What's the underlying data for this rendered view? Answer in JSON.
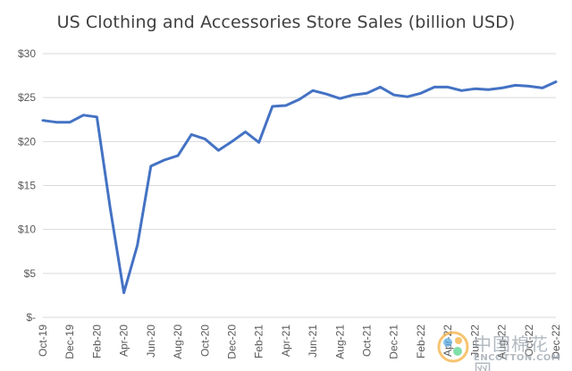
{
  "chart_data": {
    "type": "line",
    "title": "US Clothing and Accessories Store Sales (billion USD)",
    "xlabel": "",
    "ylabel": "",
    "ylim": [
      0,
      30
    ],
    "y_ticks": [
      0,
      5,
      10,
      15,
      20,
      25,
      30
    ],
    "y_tick_labels": [
      "$-",
      "$5",
      "$10",
      "$15",
      "$20",
      "$25",
      "$30"
    ],
    "x": [
      "Oct-19",
      "Nov-19",
      "Dec-19",
      "Jan-20",
      "Feb-20",
      "Mar-20",
      "Apr-20",
      "May-20",
      "Jun-20",
      "Jul-20",
      "Aug-20",
      "Sep-20",
      "Oct-20",
      "Nov-20",
      "Dec-20",
      "Jan-21",
      "Feb-21",
      "Mar-21",
      "Apr-21",
      "May-21",
      "Jun-21",
      "Jul-21",
      "Aug-21",
      "Sep-21",
      "Oct-21",
      "Nov-21",
      "Dec-21",
      "Jan-22",
      "Feb-22",
      "Mar-22",
      "Apr-22",
      "May-22",
      "Jun-22",
      "Jul-22",
      "Aug-22",
      "Sep-22",
      "Oct-22",
      "Nov-22",
      "Dec-22"
    ],
    "x_tick_labels": [
      "Oct-19",
      "Dec-19",
      "Feb-20",
      "Apr-20",
      "Jun-20",
      "Aug-20",
      "Oct-20",
      "Dec-20",
      "Feb-21",
      "Apr-21",
      "Jun-21",
      "Aug-21",
      "Oct-21",
      "Dec-21",
      "Feb-22",
      "Apr-22",
      "Jun-22",
      "Aug-22",
      "Oct-22",
      "Dec-22"
    ],
    "series": [
      {
        "values": [
          22.4,
          22.2,
          22.2,
          23.0,
          22.8,
          12.3,
          2.8,
          8.2,
          17.2,
          17.9,
          18.4,
          20.8,
          20.3,
          19.0,
          20.0,
          21.1,
          19.9,
          24.0,
          24.1,
          24.8,
          25.8,
          25.4,
          24.9,
          25.3,
          25.5,
          26.2,
          25.3,
          25.1,
          25.5,
          26.2,
          26.2,
          25.8,
          26.0,
          25.9,
          26.1,
          26.4,
          26.3,
          26.1,
          26.8
        ],
        "color": "#4472c4"
      }
    ],
    "grid": "horizontal",
    "legend": "none"
  },
  "watermark": {
    "top_text": "中国棉花网",
    "bottom_text": "ENCOTTON.COM",
    "logo_icon": "cotton-logo-icon"
  },
  "colors": {
    "line": "#4472c4",
    "grid": "#d9d9d9",
    "axis_text": "#595959",
    "title": "#404040"
  }
}
